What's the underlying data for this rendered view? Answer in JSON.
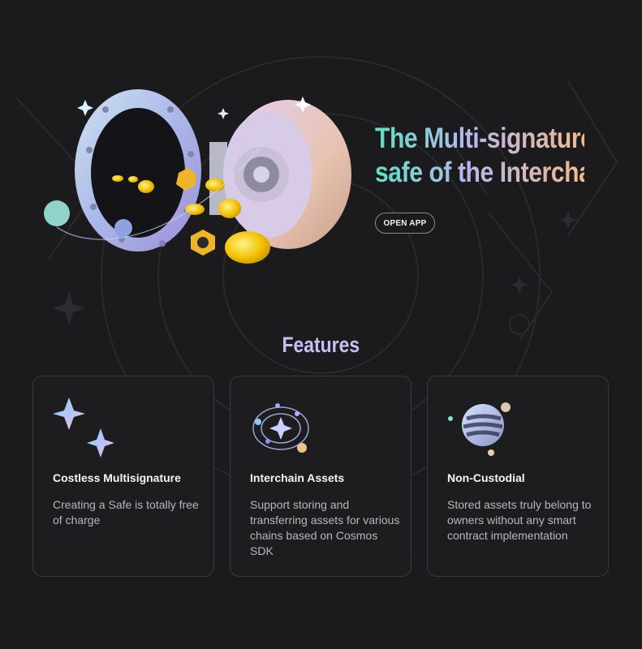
{
  "hero": {
    "title_line1": "The Multi-signature",
    "title_line2": "safe of the Interchain",
    "cta_label": "OPEN APP"
  },
  "features": {
    "heading": "Features",
    "cards": [
      {
        "title": "Costless Multisignature",
        "description": "Creating a Safe is totally free of charge",
        "icon": "sparkles-icon"
      },
      {
        "title": "Interchain Assets",
        "description": "Support storing and transferring assets for various chains based on Cosmos SDK",
        "icon": "orbit-icon"
      },
      {
        "title": "Non-Custodial",
        "description": "Stored assets truly belong to owners without any smart contract implementation",
        "icon": "planet-icon"
      }
    ]
  },
  "colors": {
    "background": "#1b1b1d",
    "gradient_start": "#5fe0c5",
    "gradient_mid": "#b9b7ee",
    "gradient_end": "#f1b98a",
    "features_heading": "#c3c1f2",
    "card_border": "#3a3a3e"
  }
}
